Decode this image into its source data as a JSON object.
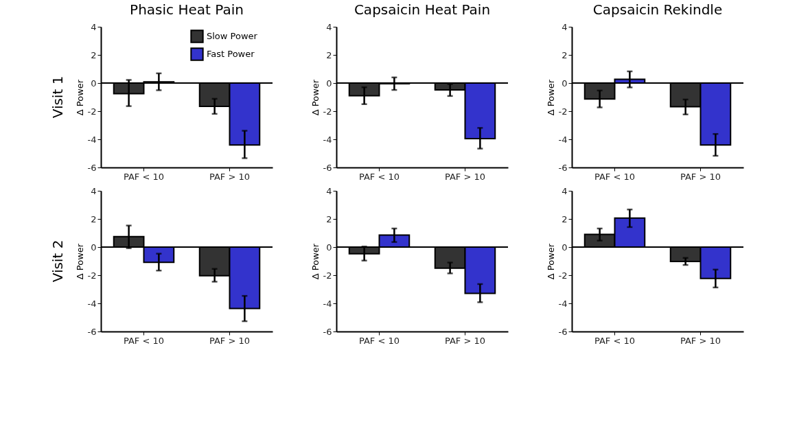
{
  "chart_data": [
    {
      "type": "bar",
      "title": "Phasic Heat Pain",
      "ylabel": "Δ Power",
      "annotations": [
        "Visit 1"
      ],
      "categories": [
        "PAF < 10",
        "PAF > 10"
      ],
      "ylim": [
        -6,
        4
      ],
      "yticks": [
        -6,
        -4,
        -2,
        0,
        2,
        4
      ],
      "legend": "top right",
      "ref_lines": [
        {
          "axis": "y",
          "value": 0
        }
      ],
      "series": [
        {
          "name": "Slow Power",
          "color": "#333333",
          "values": [
            -0.75,
            -1.66
          ],
          "errors": [
            [
              -1.64,
              0.22
            ],
            [
              -2.19,
              -1.12
            ]
          ]
        },
        {
          "name": "Fast Power",
          "color": "#3333cc",
          "values": [
            0.09,
            -4.4
          ],
          "errors": [
            [
              -0.51,
              0.69
            ],
            [
              -5.34,
              -3.39
            ]
          ]
        }
      ]
    },
    {
      "type": "bar",
      "title": "Capsaicin Heat Pain",
      "ylabel": "Δ Power",
      "categories": [
        "PAF < 10",
        "PAF > 10"
      ],
      "ylim": [
        -6,
        4
      ],
      "yticks": [
        -6,
        -4,
        -2,
        0,
        2,
        4
      ],
      "ref_lines": [
        {
          "axis": "y",
          "value": 0
        }
      ],
      "series": [
        {
          "color": "#333333",
          "values": [
            -0.9,
            -0.49
          ],
          "errors": [
            [
              -1.5,
              -0.3
            ],
            [
              -0.92,
              -0.08
            ]
          ]
        },
        {
          "color": "#3333cc",
          "values": [
            -0.05,
            -3.95
          ],
          "errors": [
            [
              -0.49,
              0.4
            ],
            [
              -4.66,
              -3.19
            ]
          ]
        }
      ]
    },
    {
      "type": "bar",
      "title": "Capsaicin Rekindle",
      "ylabel": "Δ Power",
      "categories": [
        "PAF < 10",
        "PAF > 10"
      ],
      "ylim": [
        -6,
        4
      ],
      "yticks": [
        -6,
        -4,
        -2,
        0,
        2,
        4
      ],
      "ref_lines": [
        {
          "axis": "y",
          "value": 0
        }
      ],
      "series": [
        {
          "color": "#333333",
          "values": [
            -1.13,
            -1.68
          ],
          "errors": [
            [
              -1.73,
              -0.53
            ],
            [
              -2.23,
              -1.17
            ]
          ]
        },
        {
          "color": "#3333cc",
          "values": [
            0.27,
            -4.4
          ],
          "errors": [
            [
              -0.31,
              0.83
            ],
            [
              -5.17,
              -3.62
            ]
          ]
        }
      ]
    },
    {
      "type": "bar",
      "ylabel": "Δ Power",
      "annotations": [
        "Visit 2"
      ],
      "categories": [
        "PAF < 10",
        "PAF > 10"
      ],
      "ylim": [
        -6,
        4
      ],
      "yticks": [
        -6,
        -4,
        -2,
        0,
        2,
        4
      ],
      "ref_lines": [
        {
          "axis": "y",
          "value": 0
        }
      ],
      "series": [
        {
          "color": "#333333",
          "values": [
            0.74,
            -2.04
          ],
          "errors": [
            [
              -0.08,
              1.53
            ],
            [
              -2.46,
              -1.55
            ]
          ]
        },
        {
          "color": "#3333cc",
          "values": [
            -1.08,
            -4.37
          ],
          "errors": [
            [
              -1.67,
              -0.47
            ],
            [
              -5.27,
              -3.47
            ]
          ]
        }
      ]
    },
    {
      "type": "bar",
      "ylabel": "Δ Power",
      "categories": [
        "PAF < 10",
        "PAF > 10"
      ],
      "ylim": [
        -6,
        4
      ],
      "yticks": [
        -6,
        -4,
        -2,
        0,
        2,
        4
      ],
      "ref_lines": [
        {
          "axis": "y",
          "value": 0
        }
      ],
      "series": [
        {
          "color": "#333333",
          "values": [
            -0.47,
            -1.5
          ],
          "errors": [
            [
              -0.96,
              0.04
            ],
            [
              -1.87,
              -1.1
            ]
          ]
        },
        {
          "color": "#3333cc",
          "values": [
            0.85,
            -3.29
          ],
          "errors": [
            [
              0.36,
              1.32
            ],
            [
              -3.92,
              -2.63
            ]
          ]
        }
      ]
    },
    {
      "type": "bar",
      "ylabel": "Δ Power",
      "categories": [
        "PAF < 10",
        "PAF > 10"
      ],
      "ylim": [
        -6,
        4
      ],
      "yticks": [
        -6,
        -4,
        -2,
        0,
        2,
        4
      ],
      "ref_lines": [
        {
          "axis": "y",
          "value": 0
        }
      ],
      "series": [
        {
          "color": "#333333",
          "values": [
            0.9,
            -1.03
          ],
          "errors": [
            [
              0.46,
              1.32
            ],
            [
              -1.27,
              -0.77
            ]
          ]
        },
        {
          "color": "#3333cc",
          "values": [
            2.06,
            -2.23
          ],
          "errors": [
            [
              1.42,
              2.67
            ],
            [
              -2.87,
              -1.6
            ]
          ]
        }
      ]
    }
  ]
}
